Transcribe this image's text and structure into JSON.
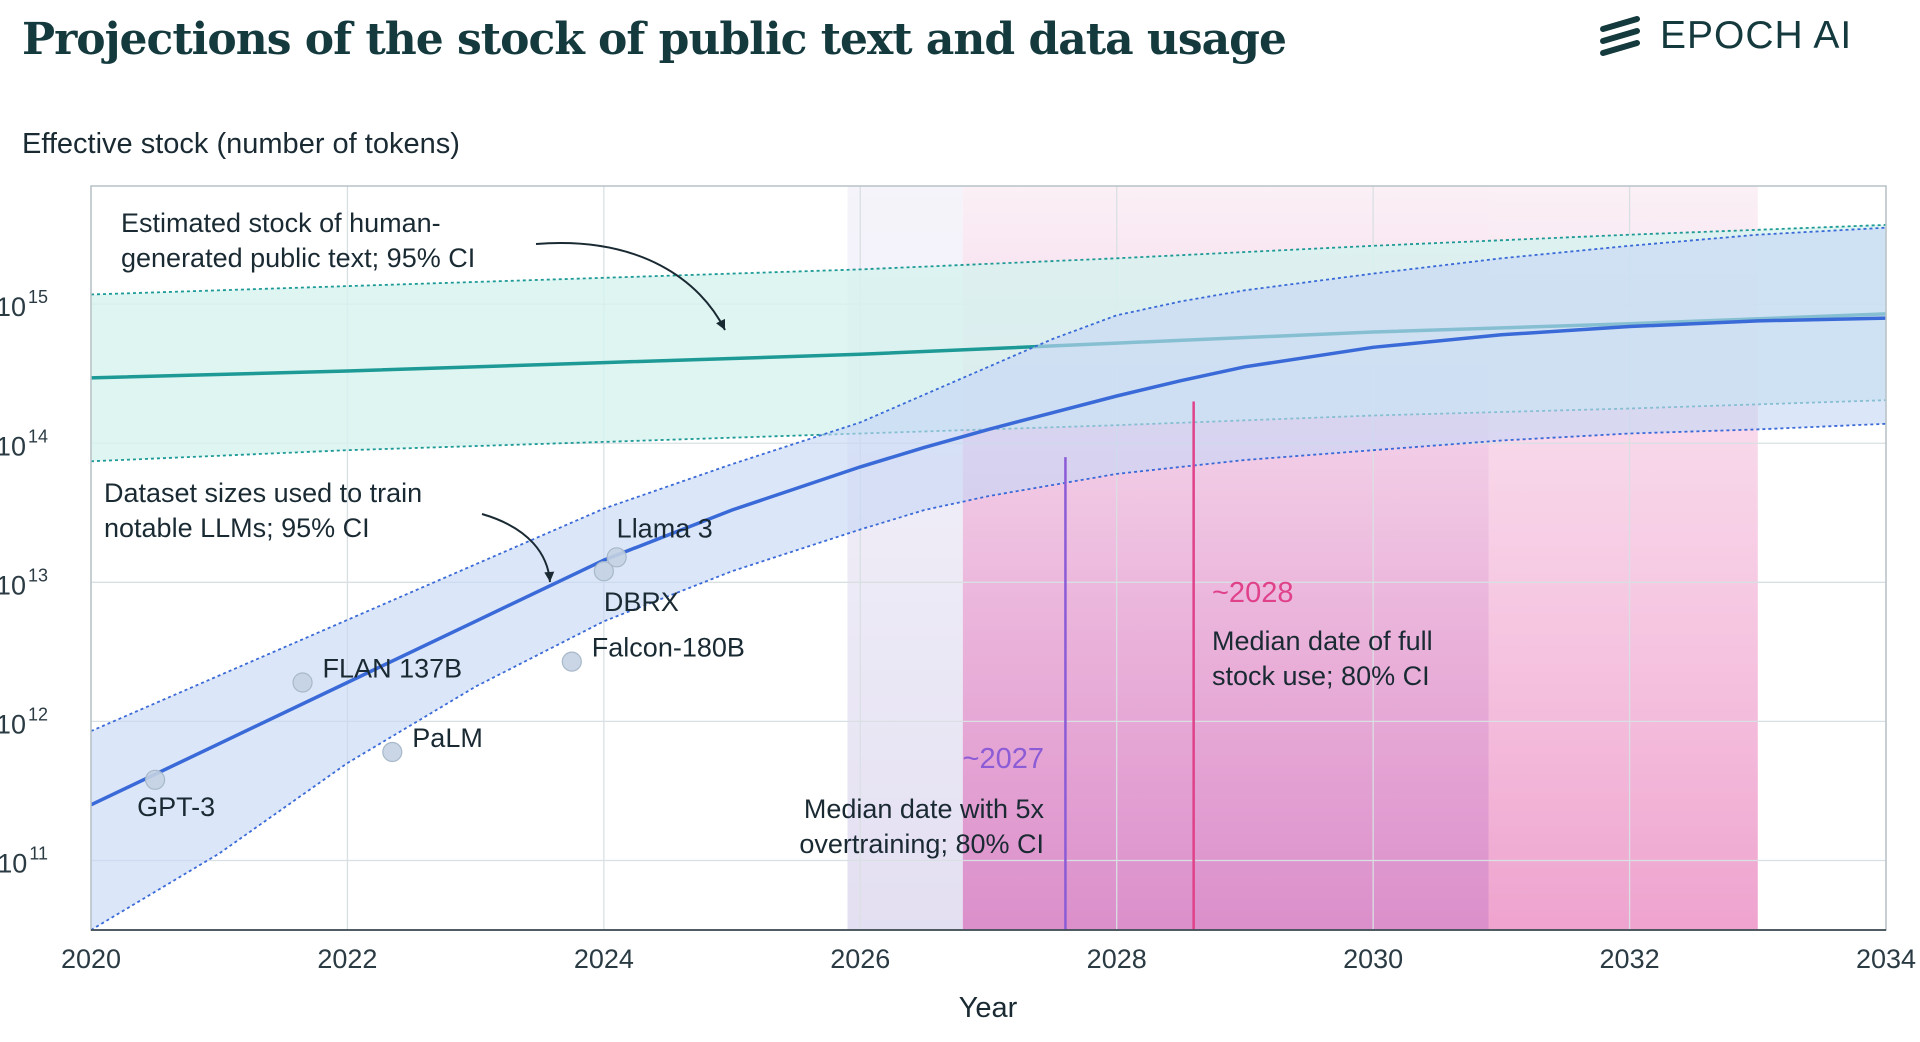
{
  "header": {
    "title": "Projections of the stock of public text and data usage",
    "brand": "EPOCH AI"
  },
  "colors": {
    "stock": "#1d9a96",
    "stock_band": "#d6f2ef",
    "usage": "#3a6ad8",
    "usage_band": "#c6d7f6",
    "overtrain": "#8b5cd6",
    "full": "#e0428a",
    "pink_band": "#e99ccc",
    "lavender_band": "#e8e4f4"
  },
  "chart_data": {
    "type": "line",
    "title": "Projections of the stock of public text and data usage",
    "ylabel": "Effective stock (number of tokens)",
    "xlabel": "Year",
    "yscale": "log",
    "xlim": [
      2020,
      2034
    ],
    "ylim_log10": [
      10.5,
      15.85
    ],
    "grid": true,
    "x_ticks": [
      "2020",
      "2022",
      "2024",
      "2026",
      "2028",
      "2030",
      "2032",
      "2034"
    ],
    "y_ticks": [
      {
        "base": "10",
        "exp": "11",
        "log10": 11
      },
      {
        "base": "10",
        "exp": "12",
        "log10": 12
      },
      {
        "base": "10",
        "exp": "13",
        "log10": 13
      },
      {
        "base": "10",
        "exp": "14",
        "log10": 14
      },
      {
        "base": "10",
        "exp": "15",
        "log10": 15
      }
    ],
    "stock": {
      "name": "Estimated stock of human-generated public text; 95% CI",
      "x": [
        2020,
        2022,
        2024,
        2026,
        2028,
        2030,
        2032,
        2034
      ],
      "median": [
        14.47,
        14.52,
        14.58,
        14.64,
        14.72,
        14.8,
        14.86,
        14.93
      ],
      "upper": [
        15.07,
        15.13,
        15.19,
        15.25,
        15.33,
        15.42,
        15.5,
        15.57
      ],
      "lower": [
        13.87,
        13.95,
        14.01,
        14.07,
        14.13,
        14.2,
        14.25,
        14.31
      ]
    },
    "usage": {
      "name": "Dataset sizes used to train notable LLMs; 95% CI",
      "x": [
        2020,
        2021,
        2022,
        2023,
        2024,
        2025,
        2026,
        2026.5,
        2027,
        2027.5,
        2028,
        2028.5,
        2029,
        2030,
        2031,
        2032,
        2033,
        2034
      ],
      "median": [
        11.4,
        11.84,
        12.28,
        12.72,
        13.16,
        13.52,
        13.83,
        13.97,
        14.1,
        14.22,
        14.34,
        14.45,
        14.55,
        14.69,
        14.78,
        14.84,
        14.88,
        14.9
      ],
      "upper": [
        11.93,
        12.33,
        12.73,
        13.13,
        13.53,
        13.85,
        14.15,
        14.35,
        14.55,
        14.75,
        14.92,
        15.02,
        15.1,
        15.22,
        15.33,
        15.42,
        15.5,
        15.55
      ],
      "lower": [
        10.5,
        11.05,
        11.7,
        12.25,
        12.72,
        13.08,
        13.38,
        13.52,
        13.62,
        13.7,
        13.78,
        13.83,
        13.88,
        13.95,
        14.02,
        14.07,
        14.1,
        14.14
      ]
    },
    "models": [
      {
        "name": "GPT-3",
        "x": 2020.5,
        "log10": 11.58,
        "label_pos": "below-right"
      },
      {
        "name": "FLAN 137B",
        "x": 2021.65,
        "log10": 12.28,
        "label_pos": "right-up"
      },
      {
        "name": "PaLM",
        "x": 2022.35,
        "log10": 11.78,
        "label_pos": "right-up"
      },
      {
        "name": "Falcon-180B",
        "x": 2023.75,
        "log10": 12.43,
        "label_pos": "right-up"
      },
      {
        "name": "DBRX",
        "x": 2024.0,
        "log10": 13.08,
        "label_pos": "below"
      },
      {
        "name": "Llama 3",
        "x": 2024.1,
        "log10": 13.18,
        "label_pos": "above-right"
      }
    ],
    "overtraining": {
      "median": 2027.6,
      "ci": [
        2026.8,
        2030.9
      ],
      "label": "~2027",
      "text": [
        "Median date with 5x",
        "overtraining; 80% CI"
      ]
    },
    "full_stock": {
      "median": 2028.6,
      "ci": [
        2026.8,
        2033.0
      ],
      "label": "~2028",
      "text": [
        "Median date of full",
        "stock use; 80% CI"
      ]
    },
    "lavender_span": [
      2025.9,
      2026.8
    ],
    "annotations": {
      "stock_label": [
        "Estimated stock of human-",
        "generated public text; 95% CI"
      ],
      "usage_label": [
        "Dataset sizes used to train",
        "notable LLMs; 95% CI"
      ]
    }
  }
}
